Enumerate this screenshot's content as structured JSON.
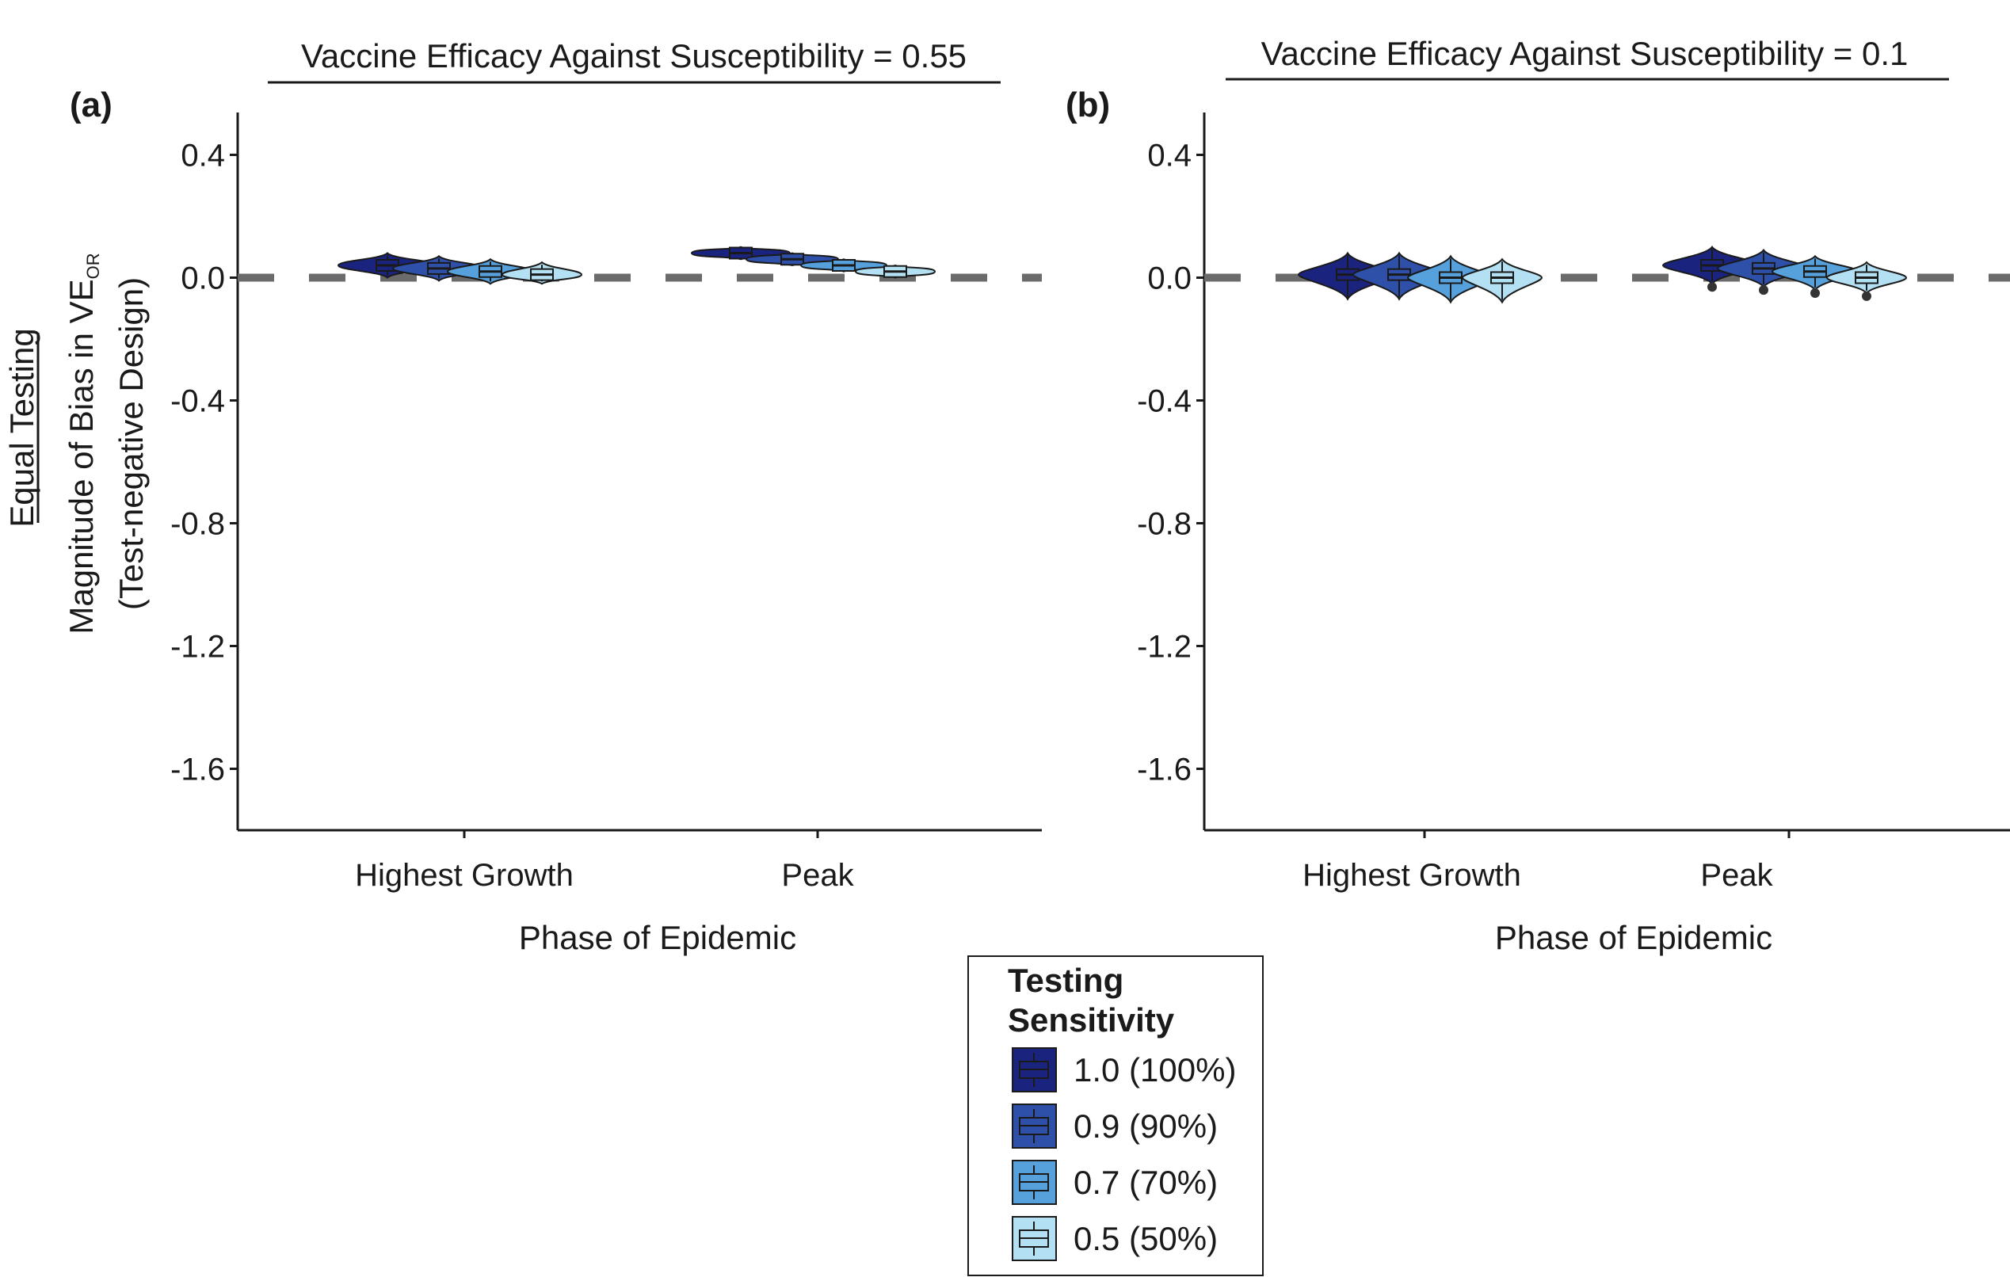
{
  "chart_data": {
    "type": "violin",
    "row_label": "Equal Testing",
    "ylabel_main": "Magnitude of Bias in VE",
    "ylabel_sub": "OR",
    "ylabel_line2": "(Test-negative Design)",
    "xlabel": "Phase of Epidemic",
    "ylim": [
      -1.8,
      0.5
    ],
    "yticks": [
      0.4,
      0.0,
      -0.4,
      -0.8,
      -1.2,
      -1.6
    ],
    "ytick_labels": [
      "0.4",
      "0.0",
      "-0.4",
      "-0.8",
      "-1.2",
      "-1.6"
    ],
    "reference_line": 0.0,
    "categories": [
      "Highest Growth",
      "Peak"
    ],
    "legend": {
      "title_line1": "Testing",
      "title_line2": "Sensitivity",
      "placement": "bottom-center"
    },
    "series": [
      {
        "name": "1.0 (100%)",
        "color": "#1a237e"
      },
      {
        "name": "0.9 (90%)",
        "color": "#2f50a8"
      },
      {
        "name": "0.7 (70%)",
        "color": "#56a0dc"
      },
      {
        "name": "0.5 (50%)",
        "color": "#b3e0f2"
      }
    ],
    "panels": [
      {
        "letter": "(a)",
        "title": "Vaccine Efficacy Against Susceptibility = 0.55",
        "medians": [
          [
            0.04,
            0.03,
            0.02,
            0.01
          ],
          [
            0.08,
            0.06,
            0.04,
            0.02
          ]
        ],
        "lower": [
          [
            0.0,
            -0.01,
            -0.02,
            -0.02
          ],
          [
            0.06,
            0.04,
            0.02,
            0.0
          ]
        ],
        "upper": [
          [
            0.08,
            0.07,
            0.06,
            0.05
          ],
          [
            0.1,
            0.08,
            0.06,
            0.04
          ]
        ]
      },
      {
        "letter": "(b)",
        "title": "Vaccine Efficacy Against Susceptibility  = 0.1",
        "medians": [
          [
            0.01,
            0.01,
            0.0,
            0.0
          ],
          [
            0.04,
            0.03,
            0.02,
            0.0
          ]
        ],
        "lower": [
          [
            -0.07,
            -0.07,
            -0.08,
            -0.08
          ],
          [
            -0.02,
            -0.03,
            -0.04,
            -0.05
          ]
        ],
        "upper": [
          [
            0.08,
            0.08,
            0.07,
            0.06
          ],
          [
            0.1,
            0.09,
            0.07,
            0.05
          ]
        ]
      }
    ]
  }
}
